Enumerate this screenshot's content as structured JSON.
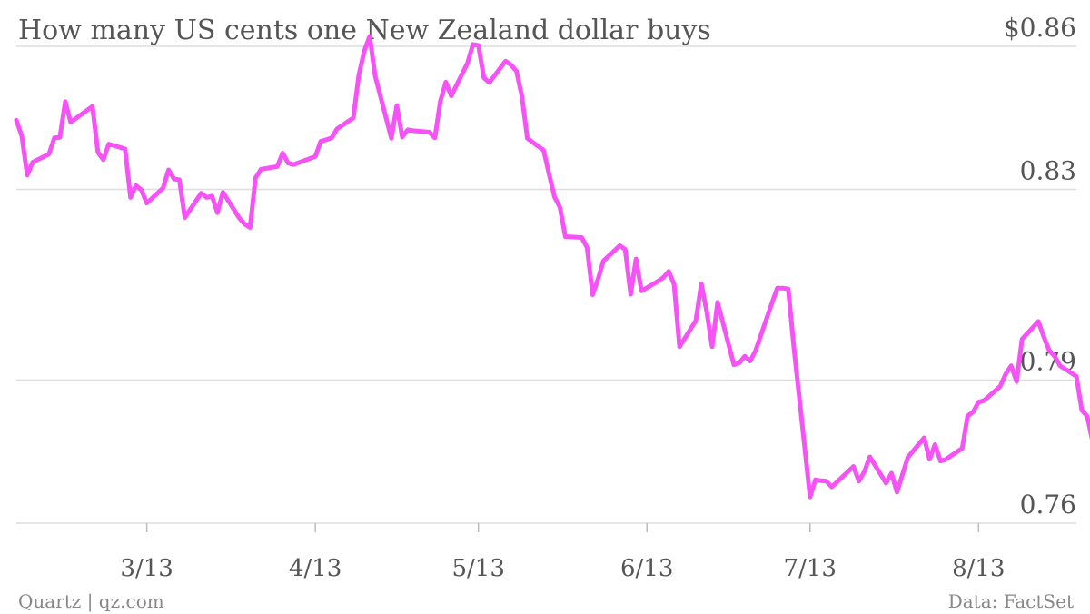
{
  "chart_data": {
    "type": "line",
    "title": "How many US cents one New Zealand dollar buys",
    "xlabel": "",
    "ylabel": "",
    "ylim": [
      0.76,
      0.86
    ],
    "y_ticks": [
      {
        "value": 0.86,
        "label": "$0.86"
      },
      {
        "value": 0.83,
        "label": "0.83"
      },
      {
        "value": 0.79,
        "label": "0.79"
      },
      {
        "value": 0.76,
        "label": "0.76"
      }
    ],
    "x_ticks": [
      {
        "date": "2013-03-01",
        "label": "3/13"
      },
      {
        "date": "2013-04-01",
        "label": "4/13"
      },
      {
        "date": "2013-05-01",
        "label": "5/13"
      },
      {
        "date": "2013-06-01",
        "label": "6/13"
      },
      {
        "date": "2013-07-01",
        "label": "7/13"
      },
      {
        "date": "2013-08-01",
        "label": "8/13"
      }
    ],
    "xlim": [
      "2013-02-05",
      "2013-08-19"
    ],
    "grid": true,
    "series": [
      {
        "color": "#f553f5",
        "points": [
          [
            "2013-02-05",
            0.8445
          ],
          [
            "2013-02-06",
            0.8412
          ],
          [
            "2013-02-07",
            0.833
          ],
          [
            "2013-02-08",
            0.8357
          ],
          [
            "2013-02-11",
            0.8374
          ],
          [
            "2013-02-12",
            0.8408
          ],
          [
            "2013-02-13",
            0.8409
          ],
          [
            "2013-02-14",
            0.8484
          ],
          [
            "2013-02-15",
            0.8441
          ],
          [
            "2013-02-19",
            0.8474
          ],
          [
            "2013-02-20",
            0.8378
          ],
          [
            "2013-02-21",
            0.8362
          ],
          [
            "2013-02-22",
            0.8395
          ],
          [
            "2013-02-25",
            0.8385
          ],
          [
            "2013-02-26",
            0.8283
          ],
          [
            "2013-02-27",
            0.8308
          ],
          [
            "2013-02-28",
            0.8299
          ],
          [
            "2013-03-01",
            0.8271
          ],
          [
            "2013-03-04",
            0.8303
          ],
          [
            "2013-03-05",
            0.8341
          ],
          [
            "2013-03-06",
            0.8322
          ],
          [
            "2013-03-07",
            0.832
          ],
          [
            "2013-03-08",
            0.8241
          ],
          [
            "2013-03-11",
            0.8292
          ],
          [
            "2013-03-12",
            0.8283
          ],
          [
            "2013-03-13",
            0.8286
          ],
          [
            "2013-03-14",
            0.8251
          ],
          [
            "2013-03-15",
            0.8294
          ],
          [
            "2013-03-18",
            0.824
          ],
          [
            "2013-03-19",
            0.8227
          ],
          [
            "2013-03-20",
            0.822
          ],
          [
            "2013-03-21",
            0.8324
          ],
          [
            "2013-03-22",
            0.8342
          ],
          [
            "2013-03-25",
            0.8348
          ],
          [
            "2013-03-26",
            0.8376
          ],
          [
            "2013-03-27",
            0.8355
          ],
          [
            "2013-03-28",
            0.8352
          ],
          [
            "2013-04-01",
            0.8369
          ],
          [
            "2013-04-02",
            0.8401
          ],
          [
            "2013-04-03",
            0.8404
          ],
          [
            "2013-04-04",
            0.8408
          ],
          [
            "2013-04-05",
            0.8427
          ],
          [
            "2013-04-08",
            0.845
          ],
          [
            "2013-04-09",
            0.8539
          ],
          [
            "2013-04-10",
            0.859
          ],
          [
            "2013-04-11",
            0.8621
          ],
          [
            "2013-04-12",
            0.8538
          ],
          [
            "2013-04-15",
            0.8407
          ],
          [
            "2013-04-16",
            0.8476
          ],
          [
            "2013-04-17",
            0.841
          ],
          [
            "2013-04-18",
            0.8425
          ],
          [
            "2013-04-19",
            0.8423
          ],
          [
            "2013-04-22",
            0.842
          ],
          [
            "2013-04-23",
            0.8408
          ],
          [
            "2013-04-24",
            0.8485
          ],
          [
            "2013-04-25",
            0.8525
          ],
          [
            "2013-04-26",
            0.8496
          ],
          [
            "2013-04-29",
            0.8565
          ],
          [
            "2013-04-30",
            0.8604
          ],
          [
            "2013-05-01",
            0.8602
          ],
          [
            "2013-05-02",
            0.8534
          ],
          [
            "2013-05-03",
            0.8524
          ],
          [
            "2013-05-06",
            0.8569
          ],
          [
            "2013-05-07",
            0.8561
          ],
          [
            "2013-05-08",
            0.8548
          ],
          [
            "2013-05-09",
            0.8495
          ],
          [
            "2013-05-10",
            0.8407
          ],
          [
            "2013-05-13",
            0.8382
          ],
          [
            "2013-05-14",
            0.8332
          ],
          [
            "2013-05-15",
            0.8284
          ],
          [
            "2013-05-16",
            0.8262
          ],
          [
            "2013-05-17",
            0.8201
          ],
          [
            "2013-05-20",
            0.8199
          ],
          [
            "2013-05-21",
            0.8178
          ],
          [
            "2013-05-22",
            0.8079
          ],
          [
            "2013-05-23",
            0.8112
          ],
          [
            "2013-05-24",
            0.815
          ],
          [
            "2013-05-27",
            0.8182
          ],
          [
            "2013-05-28",
            0.8174
          ],
          [
            "2013-05-29",
            0.808
          ],
          [
            "2013-05-30",
            0.8154
          ],
          [
            "2013-05-31",
            0.8087
          ],
          [
            "2013-06-03",
            0.8107
          ],
          [
            "2013-06-04",
            0.8115
          ],
          [
            "2013-06-05",
            0.8128
          ],
          [
            "2013-06-06",
            0.8101
          ],
          [
            "2013-06-07",
            0.797
          ],
          [
            "2013-06-10",
            0.8025
          ],
          [
            "2013-06-11",
            0.8102
          ],
          [
            "2013-06-12",
            0.8044
          ],
          [
            "2013-06-13",
            0.797
          ],
          [
            "2013-06-14",
            0.8063
          ],
          [
            "2013-06-17",
            0.7932
          ],
          [
            "2013-06-18",
            0.7936
          ],
          [
            "2013-06-19",
            0.795
          ],
          [
            "2013-06-20",
            0.794
          ],
          [
            "2013-06-21",
            0.7962
          ],
          [
            "2013-06-24",
            0.8062
          ],
          [
            "2013-06-25",
            0.8093
          ],
          [
            "2013-06-26",
            0.8093
          ],
          [
            "2013-06-27",
            0.8091
          ],
          [
            "2013-06-28",
            0.7972
          ],
          [
            "2013-07-01",
            0.7655
          ],
          [
            "2013-07-02",
            0.7691
          ],
          [
            "2013-07-03",
            0.7689
          ],
          [
            "2013-07-04",
            0.7688
          ],
          [
            "2013-07-05",
            0.7676
          ],
          [
            "2013-07-08",
            0.7708
          ],
          [
            "2013-07-09",
            0.7719
          ],
          [
            "2013-07-10",
            0.7688
          ],
          [
            "2013-07-11",
            0.7708
          ],
          [
            "2013-07-12",
            0.7739
          ],
          [
            "2013-07-15",
            0.7684
          ],
          [
            "2013-07-16",
            0.7705
          ],
          [
            "2013-07-17",
            0.7665
          ],
          [
            "2013-07-18",
            0.7702
          ],
          [
            "2013-07-19",
            0.7738
          ],
          [
            "2013-07-22",
            0.7779
          ],
          [
            "2013-07-23",
            0.7734
          ],
          [
            "2013-07-24",
            0.7765
          ],
          [
            "2013-07-25",
            0.773
          ],
          [
            "2013-07-26",
            0.7734
          ],
          [
            "2013-07-29",
            0.7757
          ],
          [
            "2013-07-30",
            0.7825
          ],
          [
            "2013-07-31",
            0.7833
          ],
          [
            "2013-08-01",
            0.7854
          ],
          [
            "2013-08-02",
            0.7857
          ],
          [
            "2013-08-05",
            0.7887
          ],
          [
            "2013-08-06",
            0.7913
          ],
          [
            "2013-08-07",
            0.793
          ],
          [
            "2013-08-08",
            0.7897
          ],
          [
            "2013-08-09",
            0.7986
          ],
          [
            "2013-08-12",
            0.8023
          ],
          [
            "2013-08-13",
            0.7991
          ],
          [
            "2013-08-14",
            0.7962
          ],
          [
            "2013-08-15",
            0.795
          ],
          [
            "2013-08-16",
            0.793
          ],
          [
            "2013-08-19",
            0.7908
          ],
          [
            "2013-08-20",
            0.7837
          ],
          [
            "2013-08-21",
            0.7824
          ],
          [
            "2013-08-22",
            0.777
          ],
          [
            "2013-08-23",
            0.7716
          ]
        ]
      }
    ]
  },
  "footer": {
    "left": "Quartz | qz.com",
    "right": "Data: FactSet"
  }
}
